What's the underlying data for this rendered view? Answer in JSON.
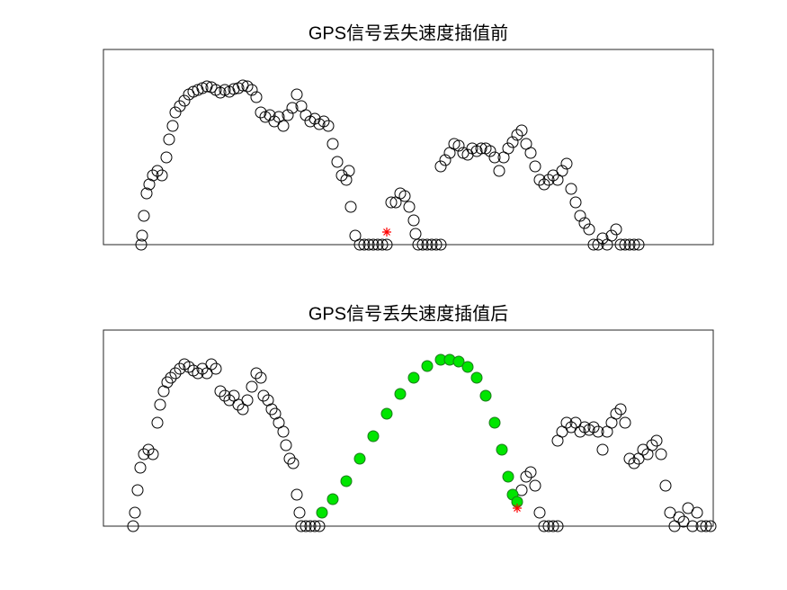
{
  "chart_data": [
    {
      "type": "scatter",
      "title": "GPS信号丢失速度插值前",
      "xlim": [
        0,
        678
      ],
      "ylim": [
        0,
        217
      ],
      "series": [
        {
          "color": "#000000",
          "marker": "circle",
          "x": [
            42,
            43,
            45,
            48,
            51,
            55,
            60,
            65,
            70,
            73,
            77,
            80,
            85,
            90,
            95,
            100,
            105,
            110,
            115,
            120,
            125,
            130,
            135,
            140,
            145,
            150,
            155,
            160,
            165,
            170,
            175,
            180,
            185,
            190,
            195,
            200,
            205,
            210,
            215,
            220,
            225,
            230,
            235,
            240,
            245,
            250,
            255,
            260,
            265,
            270,
            273,
            275,
            280,
            285,
            290,
            295,
            300,
            305,
            310,
            315,
            320,
            325,
            330,
            335,
            340,
            345,
            347,
            350,
            355,
            360,
            365,
            370,
            375,
            375,
            380,
            385,
            390,
            395,
            400,
            405,
            410,
            415,
            420,
            425,
            430,
            435,
            440,
            445,
            450,
            455,
            460,
            465,
            470,
            475,
            480,
            485,
            490,
            495,
            500,
            505,
            510,
            515,
            520,
            525,
            530,
            535,
            540,
            545,
            550,
            555,
            560,
            565,
            570,
            575,
            580,
            585,
            590,
            595
          ],
          "values": [
            0,
            10,
            32,
            57,
            67,
            77,
            82,
            77,
            97,
            117,
            132,
            147,
            154,
            160,
            167,
            170,
            172,
            174,
            176,
            175,
            172,
            169,
            172,
            170,
            173,
            174,
            177,
            176,
            172,
            164,
            147,
            142,
            144,
            137,
            142,
            132,
            144,
            152,
            167,
            154,
            144,
            137,
            140,
            134,
            137,
            132,
            112,
            92,
            77,
            72,
            82,
            42,
            10,
            0,
            0,
            0,
            0,
            0,
            0,
            0,
            47,
            47,
            57,
            54,
            42,
            27,
            12,
            0,
            0,
            0,
            0,
            0,
            0,
            87,
            94,
            102,
            112,
            110,
            102,
            100,
            107,
            104,
            107,
            107,
            104,
            97,
            82,
            97,
            107,
            114,
            122,
            127,
            112,
            102,
            87,
            72,
            67,
            72,
            77,
            72,
            82,
            90,
            62,
            47,
            32,
            24,
            17,
            0,
            0,
            7,
            0,
            10,
            17,
            0,
            0,
            0,
            0,
            0
          ]
        },
        {
          "color": "#ff0000",
          "marker": "star",
          "x": [
            315
          ],
          "values": [
            14
          ]
        }
      ]
    },
    {
      "type": "scatter",
      "title": "GPS信号丢失速度插值后",
      "xlim": [
        0,
        678
      ],
      "ylim": [
        0,
        218
      ],
      "series": [
        {
          "color": "#000000",
          "marker": "circle",
          "x": [
            33,
            35,
            38,
            41,
            45,
            50,
            55,
            60,
            63,
            67,
            71,
            75,
            80,
            85,
            90,
            95,
            100,
            105,
            110,
            115,
            120,
            125,
            130,
            135,
            140,
            145,
            150,
            155,
            160,
            165,
            170,
            175,
            178,
            183,
            187,
            191,
            195,
            200,
            203,
            207,
            211,
            215,
            218,
            220,
            225,
            230,
            235,
            240,
            465,
            470,
            475,
            480,
            485,
            490,
            495,
            500,
            505,
            505,
            510,
            515,
            520,
            525,
            530,
            535,
            540,
            545,
            550,
            555,
            560,
            565,
            570,
            575,
            580,
            585,
            590,
            595,
            600,
            605,
            610,
            615,
            620,
            625,
            630,
            635,
            640,
            645,
            650,
            655,
            660,
            665,
            670,
            675
          ],
          "values": [
            0,
            15,
            40,
            65,
            80,
            85,
            80,
            115,
            135,
            150,
            160,
            165,
            170,
            175,
            180,
            177,
            173,
            170,
            175,
            170,
            180,
            175,
            150,
            145,
            140,
            145,
            135,
            130,
            140,
            155,
            170,
            165,
            145,
            140,
            130,
            125,
            115,
            105,
            90,
            75,
            70,
            35,
            15,
            0,
            0,
            0,
            0,
            0,
            40,
            55,
            60,
            45,
            15,
            0,
            0,
            0,
            0,
            95,
            105,
            115,
            110,
            115,
            105,
            110,
            107,
            110,
            105,
            85,
            105,
            115,
            125,
            130,
            115,
            75,
            70,
            75,
            85,
            80,
            90,
            95,
            80,
            45,
            15,
            0,
            10,
            5,
            20,
            0,
            15,
            0,
            0,
            0
          ]
        },
        {
          "color": "#00e600",
          "marker": "filled-circle",
          "x": [
            243,
            255,
            270,
            285,
            300,
            315,
            330,
            345,
            360,
            375,
            385,
            395,
            405,
            415,
            425,
            435,
            443,
            450,
            455,
            460
          ],
          "values": [
            15,
            30,
            50,
            75,
            100,
            125,
            147,
            165,
            178,
            185,
            185,
            183,
            177,
            165,
            145,
            115,
            85,
            55,
            35,
            27
          ]
        },
        {
          "color": "#ff0000",
          "marker": "star",
          "x": [
            460
          ],
          "values": [
            20
          ]
        }
      ]
    }
  ]
}
